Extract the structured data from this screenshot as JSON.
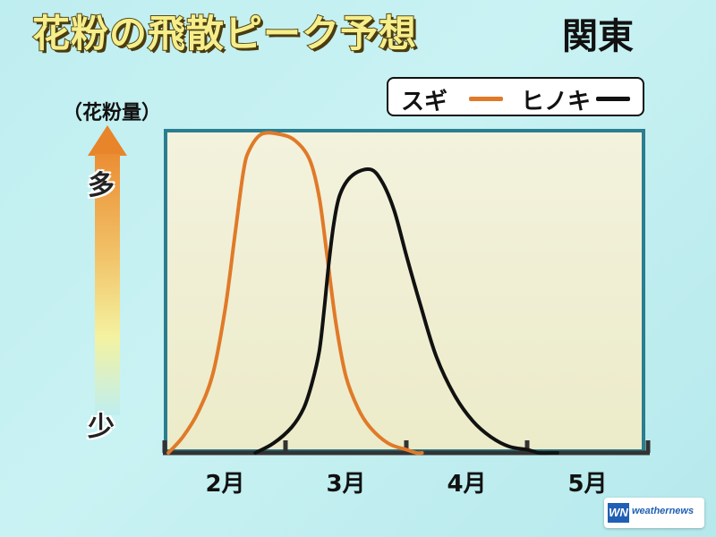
{
  "title": "花粉の飛散ピーク予想",
  "region": "関東",
  "unit_label": "（花粉量）",
  "level_high": "多",
  "level_low": "少",
  "legend": {
    "sugi_label": "スギ",
    "sugi_color": "#e07a28",
    "hinoki_label": "ヒノキ",
    "hinoki_color": "#111111"
  },
  "logo": {
    "mark": "WN",
    "text": "weathernews"
  },
  "chart_data": {
    "type": "line",
    "x_tick_labels": [
      "2月",
      "3月",
      "4月",
      "5月"
    ],
    "xlim": [
      1.5,
      5.5
    ],
    "ylim": [
      0,
      100
    ],
    "grid": false,
    "legend_position": "top-right",
    "series": [
      {
        "name": "スギ",
        "color": "#e07a28",
        "x": [
          1.53,
          1.65,
          1.78,
          1.9,
          2.0,
          2.08,
          2.15,
          2.2,
          2.3,
          2.45,
          2.58,
          2.7,
          2.78,
          2.85,
          2.92,
          3.0,
          3.1,
          3.2,
          3.35,
          3.5,
          3.58,
          3.63
        ],
        "y": [
          0,
          5,
          13,
          25,
          45,
          68,
          88,
          95,
          100,
          100,
          98,
          92,
          80,
          60,
          40,
          24,
          14,
          8,
          3,
          1,
          0,
          0
        ]
      },
      {
        "name": "ヒノキ",
        "color": "#111111",
        "x": [
          2.25,
          2.4,
          2.55,
          2.65,
          2.72,
          2.78,
          2.82,
          2.86,
          2.9,
          2.95,
          3.05,
          3.2,
          3.3,
          3.4,
          3.5,
          3.62,
          3.75,
          3.9,
          4.05,
          4.2,
          4.35,
          4.5,
          4.6,
          4.7,
          4.75
        ],
        "y": [
          0,
          3,
          8,
          14,
          22,
          32,
          45,
          60,
          72,
          81,
          87,
          89,
          85,
          76,
          62,
          46,
          30,
          18,
          10,
          5,
          2,
          1,
          0,
          0,
          0
        ]
      }
    ]
  }
}
